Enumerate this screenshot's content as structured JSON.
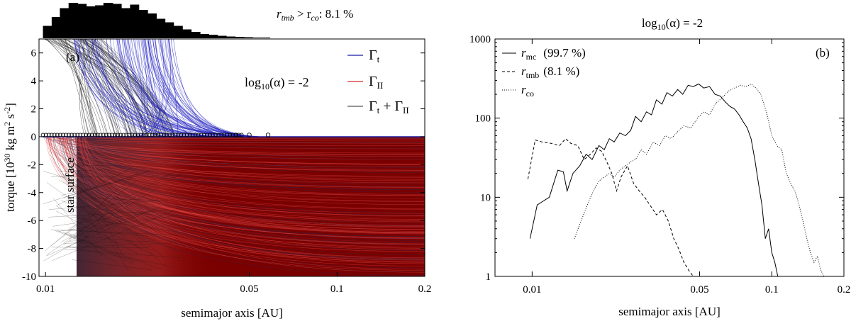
{
  "chart_data": [
    {
      "panel": "(a)",
      "type": "line",
      "xlabel": "semimajor axis [AU]",
      "ylabel": "torque [10",
      "ylabel_sup": "30",
      "ylabel_rest": " kg m",
      "ylabel_sup2": "2",
      "ylabel_rest2": " s",
      "ylabel_sup3": "-2",
      "ylabel_end": "]",
      "xscale": "log",
      "xlim": [
        0.0095,
        0.2
      ],
      "ylim": [
        -10,
        7
      ],
      "xticks": [
        0.01,
        0.05,
        0.1,
        0.2
      ],
      "xtick_labels": [
        "0.01",
        "0.05",
        "0.1",
        "0.2"
      ],
      "yticks": [
        6,
        4,
        2,
        0,
        -2,
        -4,
        -6,
        -8,
        -10
      ],
      "ytick_labels": [
        "6",
        "4",
        "2",
        "0",
        "-2",
        "-4",
        "-6",
        "-8",
        "-10"
      ],
      "legend": {
        "position": "top-right",
        "entries": [
          {
            "label": "Γ",
            "sub": "t",
            "color": "#1a1aa0"
          },
          {
            "label": "Γ",
            "sub": "II",
            "color": "#d42a2a"
          },
          {
            "label": "Γ",
            "sub": "t",
            "plus": " + Γ",
            "sub2": "II",
            "color": "#555555"
          }
        ]
      },
      "annotation_alpha": "log",
      "annotation_alpha_sub": "10",
      "annotation_alpha_rest": "(α) = -2",
      "annotation_star": "star surface",
      "histogram_note": {
        "r": "r",
        "sub1": "tmb",
        "mid": " > r",
        "sub2": "co",
        "rest": ": 8.1 %"
      },
      "histogram_bins": [
        {
          "x": 0.0098,
          "h": 0.35
        },
        {
          "x": 0.0105,
          "h": 0.6
        },
        {
          "x": 0.0112,
          "h": 0.85
        },
        {
          "x": 0.012,
          "h": 1.0
        },
        {
          "x": 0.0129,
          "h": 0.97
        },
        {
          "x": 0.0138,
          "h": 0.9
        },
        {
          "x": 0.0148,
          "h": 0.93
        },
        {
          "x": 0.0158,
          "h": 1.0
        },
        {
          "x": 0.017,
          "h": 0.97
        },
        {
          "x": 0.0182,
          "h": 0.85
        },
        {
          "x": 0.0195,
          "h": 0.95
        },
        {
          "x": 0.0209,
          "h": 0.8
        },
        {
          "x": 0.0224,
          "h": 0.7
        },
        {
          "x": 0.024,
          "h": 0.55
        },
        {
          "x": 0.0257,
          "h": 0.45
        },
        {
          "x": 0.0275,
          "h": 0.35
        },
        {
          "x": 0.0295,
          "h": 0.25
        },
        {
          "x": 0.0316,
          "h": 0.18
        },
        {
          "x": 0.0339,
          "h": 0.12
        },
        {
          "x": 0.0363,
          "h": 0.1
        },
        {
          "x": 0.0389,
          "h": 0.07
        },
        {
          "x": 0.0417,
          "h": 0.05
        },
        {
          "x": 0.0447,
          "h": 0.04
        },
        {
          "x": 0.0479,
          "h": 0.03
        },
        {
          "x": 0.0513,
          "h": 0.02
        },
        {
          "x": 0.055,
          "h": 0.02
        }
      ],
      "open_markers_x": [
        0.045,
        0.05,
        0.058
      ]
    },
    {
      "panel": "(b)",
      "type": "line",
      "title": "log",
      "title_sub": "10",
      "title_rest": "(α) = -2",
      "xlabel": "semimajor axis [AU]",
      "xscale": "log",
      "yscale": "log",
      "xlim": [
        0.007,
        0.2
      ],
      "ylim": [
        1,
        1000
      ],
      "xticks": [
        0.01,
        0.05,
        0.1,
        0.2
      ],
      "xtick_labels": [
        "0.01",
        "0.05",
        "0.1",
        "0.2"
      ],
      "yticks": [
        1,
        10,
        100,
        1000
      ],
      "ytick_labels": [
        "1",
        "10",
        "100",
        "1000"
      ],
      "legend": {
        "position": "top-left"
      },
      "series": [
        {
          "name": "r",
          "sub": "mc",
          "pct": "(99.7 %)",
          "style": "solid",
          "x": [
            0.0098,
            0.0105,
            0.0118,
            0.0128,
            0.0135,
            0.014,
            0.0148,
            0.0158,
            0.0168,
            0.0178,
            0.019,
            0.02,
            0.021,
            0.022,
            0.0232,
            0.0245,
            0.0258,
            0.027,
            0.0285,
            0.03,
            0.0315,
            0.033,
            0.0348,
            0.0365,
            0.0385,
            0.0405,
            0.0425,
            0.0448,
            0.047,
            0.0495,
            0.052,
            0.055,
            0.058,
            0.061,
            0.064,
            0.067,
            0.07,
            0.073,
            0.076,
            0.079,
            0.082,
            0.085,
            0.088,
            0.091,
            0.094,
            0.097,
            0.1,
            0.103,
            0.106
          ],
          "y": [
            3,
            8,
            10,
            22,
            21,
            12,
            20,
            25,
            35,
            30,
            45,
            40,
            55,
            50,
            65,
            60,
            70,
            105,
            90,
            120,
            110,
            170,
            150,
            210,
            190,
            230,
            200,
            260,
            250,
            270,
            240,
            250,
            200,
            190,
            160,
            140,
            130,
            110,
            90,
            75,
            55,
            30,
            15,
            8,
            3,
            4,
            2,
            1.5,
            1
          ]
        },
        {
          "name": "r",
          "sub": "tmb",
          "pct": "(8.1 %)",
          "style": "dashed",
          "x": [
            0.0096,
            0.0103,
            0.011,
            0.012,
            0.013,
            0.0138,
            0.0145,
            0.0155,
            0.0165,
            0.0175,
            0.0185,
            0.0195,
            0.0205,
            0.0215,
            0.0225,
            0.0235,
            0.025,
            0.0265,
            0.028,
            0.0295,
            0.031,
            0.033,
            0.035,
            0.037,
            0.039,
            0.041,
            0.043,
            0.045,
            0.047
          ],
          "y": [
            17,
            53,
            50,
            48,
            45,
            55,
            48,
            45,
            30,
            35,
            42,
            38,
            28,
            20,
            12,
            18,
            25,
            15,
            12,
            10,
            8,
            6,
            7,
            5,
            3,
            2.2,
            1.5,
            1.2,
            1
          ]
        },
        {
          "name": "r",
          "sub": "co",
          "pct": "",
          "style": "dotted",
          "x": [
            0.015,
            0.016,
            0.017,
            0.018,
            0.019,
            0.02,
            0.021,
            0.022,
            0.0232,
            0.0245,
            0.0258,
            0.027,
            0.0285,
            0.03,
            0.032,
            0.034,
            0.036,
            0.038,
            0.04,
            0.043,
            0.046,
            0.049,
            0.052,
            0.055,
            0.058,
            0.062,
            0.066,
            0.07,
            0.074,
            0.078,
            0.082,
            0.086,
            0.09,
            0.095,
            0.1,
            0.105,
            0.11,
            0.115,
            0.12,
            0.125,
            0.13,
            0.135,
            0.14,
            0.145,
            0.15,
            0.155,
            0.16,
            0.165
          ],
          "y": [
            3,
            5,
            8,
            12,
            16,
            18,
            20,
            18,
            22,
            25,
            28,
            30,
            40,
            35,
            50,
            45,
            60,
            55,
            65,
            80,
            75,
            100,
            120,
            110,
            150,
            180,
            220,
            240,
            260,
            250,
            270,
            240,
            200,
            120,
            60,
            45,
            40,
            20,
            15,
            12,
            8,
            5,
            3,
            2,
            1.5,
            1.8,
            1.2,
            1
          ]
        }
      ]
    }
  ]
}
